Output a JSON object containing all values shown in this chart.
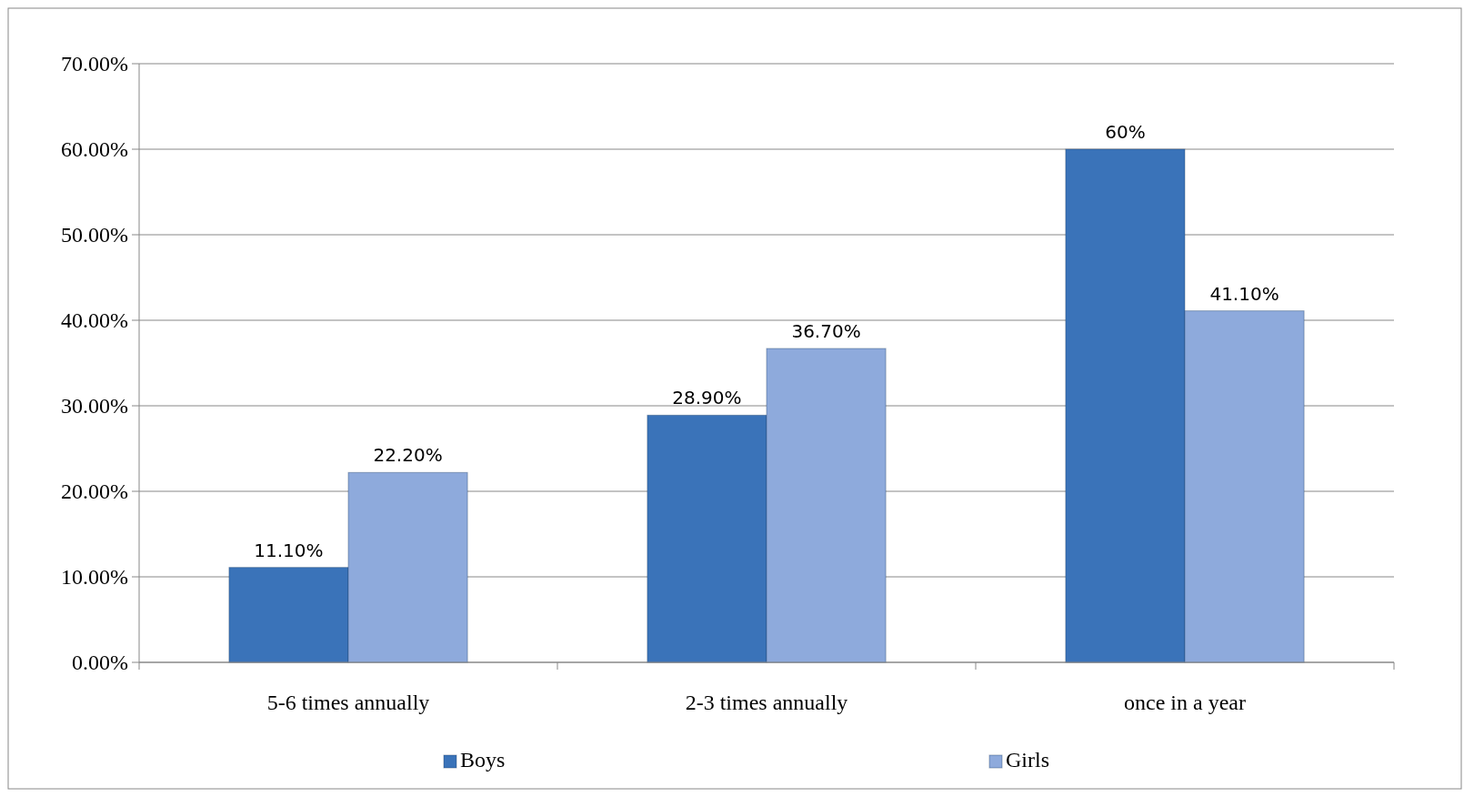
{
  "chart_data": {
    "type": "bar",
    "categories": [
      "5-6 times annually",
      "2-3 times annually",
      "once in a year"
    ],
    "series": [
      {
        "name": "Boys",
        "color": "#3a73b9",
        "values": [
          11.1,
          28.9,
          60
        ],
        "value_labels": [
          "11.10%",
          "28.90%",
          "60%"
        ]
      },
      {
        "name": "Girls",
        "color": "#8eaadc",
        "values": [
          22.2,
          36.7,
          41.1
        ],
        "value_labels": [
          "22.20%",
          "36.70%",
          "41.10%"
        ]
      }
    ],
    "ylim": [
      0,
      70
    ],
    "yticks": [
      {
        "value": 0,
        "label": "0.00%"
      },
      {
        "value": 10,
        "label": "10.00%"
      },
      {
        "value": 20,
        "label": "20.00%"
      },
      {
        "value": 30,
        "label": "30.00%"
      },
      {
        "value": 40,
        "label": "40.00%"
      },
      {
        "value": 50,
        "label": "50.00%"
      },
      {
        "value": 60,
        "label": "60.00%"
      },
      {
        "value": 70,
        "label": "70.00%"
      }
    ],
    "grid": "y",
    "legend": "bottom"
  }
}
